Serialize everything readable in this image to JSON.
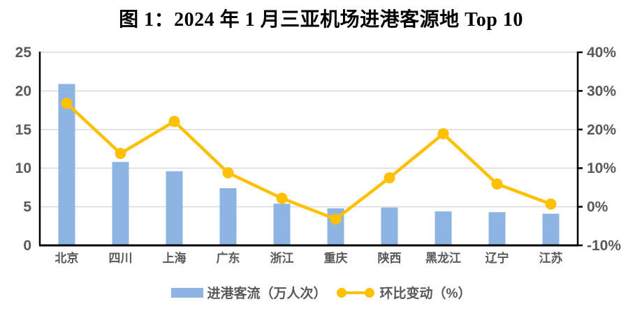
{
  "title": "图 1：2024 年 1 月三亚机场进港客源地 Top 10",
  "legend": {
    "bar_label": "进港客流（万人次）",
    "line_label": "环比变动（%）"
  },
  "colors": {
    "bar": "#8DB4E2",
    "line": "#FFC000",
    "grid": "#DCDCDC",
    "axis": "#000000",
    "tick_text": "#595959"
  },
  "chart_data": {
    "type": "bar",
    "subtype": "bar+line combo",
    "title": "图 1：2024 年 1 月三亚机场进港客源地 Top 10",
    "categories": [
      "北京",
      "四川",
      "上海",
      "广东",
      "浙江",
      "重庆",
      "陕西",
      "黑龙江",
      "辽宁",
      "江苏"
    ],
    "series": [
      {
        "name": "进港客流（万人次）",
        "type": "bar",
        "axis": "left",
        "values": [
          20.9,
          10.8,
          9.6,
          7.4,
          5.4,
          4.8,
          4.9,
          4.4,
          4.3,
          4.1
        ]
      },
      {
        "name": "环比变动（%）",
        "type": "line",
        "axis": "right",
        "values": [
          26.8,
          13.8,
          22.1,
          8.8,
          2.2,
          -3.2,
          7.5,
          18.9,
          5.9,
          0.7
        ]
      }
    ],
    "left_axis": {
      "min": 0,
      "max": 25,
      "tick_values": [
        0,
        5,
        10,
        15,
        20,
        25
      ],
      "tick_labels": [
        "0",
        "5",
        "10",
        "15",
        "20",
        "25"
      ]
    },
    "right_axis": {
      "min": -10,
      "max": 40,
      "tick_values": [
        -10,
        0,
        10,
        20,
        30,
        40
      ],
      "tick_labels": [
        "-10%",
        "0%",
        "10%",
        "20%",
        "30%",
        "40%"
      ]
    },
    "grid": true,
    "legend_position": "bottom"
  }
}
